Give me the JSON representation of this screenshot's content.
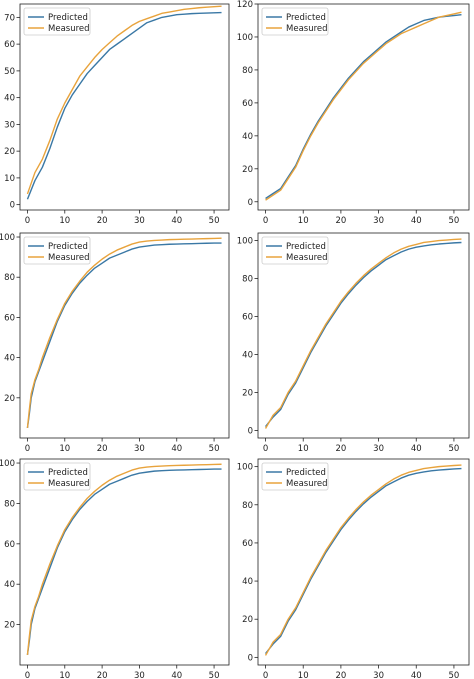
{
  "colors": {
    "predicted": "#3a78a5",
    "measured": "#e8a33c",
    "axis": "#222222"
  },
  "chart_data": [
    {
      "type": "line",
      "legend": "top-left",
      "grid": false,
      "xlim": [
        -2,
        54
      ],
      "ylim": [
        -2,
        75
      ],
      "xticks": [
        0,
        10,
        20,
        30,
        40,
        50
      ],
      "yticks": [
        0,
        10,
        20,
        30,
        40,
        50,
        60,
        70
      ],
      "x": [
        0,
        2,
        4,
        6,
        8,
        10,
        12,
        14,
        16,
        18,
        20,
        22,
        24,
        26,
        28,
        30,
        32,
        34,
        36,
        38,
        40,
        42,
        44,
        46,
        48,
        50,
        52
      ],
      "series": [
        {
          "name": "Predicted",
          "values": [
            2,
            9,
            14,
            21,
            29,
            36,
            41,
            45,
            49,
            52,
            55,
            58,
            60,
            62,
            64,
            66,
            68,
            69,
            70,
            70.5,
            71,
            71.2,
            71.4,
            71.5,
            71.6,
            71.7,
            71.8
          ]
        },
        {
          "name": "Measured",
          "values": [
            4,
            12,
            17,
            24,
            32,
            38,
            43,
            48,
            51.5,
            55,
            58,
            60.5,
            63,
            65,
            67,
            68.5,
            69.5,
            70.5,
            71.5,
            72,
            72.5,
            73,
            73.3,
            73.6,
            73.8,
            74,
            74.2
          ]
        }
      ]
    },
    {
      "type": "line",
      "legend": "top-left",
      "grid": false,
      "xlim": [
        -2,
        54
      ],
      "ylim": [
        -5,
        120
      ],
      "xticks": [
        0,
        10,
        20,
        30,
        40,
        50
      ],
      "yticks": [
        0,
        20,
        40,
        60,
        80,
        100,
        120
      ],
      "x": [
        0,
        2,
        4,
        6,
        8,
        10,
        12,
        14,
        16,
        18,
        20,
        22,
        24,
        26,
        28,
        30,
        32,
        34,
        36,
        38,
        40,
        42,
        44,
        46,
        48,
        50,
        52
      ],
      "series": [
        {
          "name": "Predicted",
          "values": [
            2,
            5,
            8,
            15,
            22,
            32,
            41,
            49,
            56,
            63,
            69,
            75,
            80,
            85,
            89,
            93,
            97,
            100,
            103,
            106,
            108,
            110,
            111,
            112,
            112.5,
            113,
            113.5
          ]
        },
        {
          "name": "Measured",
          "values": [
            1,
            4,
            7,
            14,
            21,
            31,
            40,
            48,
            55,
            62,
            68,
            74,
            79,
            84,
            88,
            92,
            96,
            99,
            102,
            104,
            106,
            108,
            110,
            112,
            113,
            114,
            115
          ]
        }
      ]
    },
    {
      "type": "line",
      "legend": "top-left",
      "grid": false,
      "xlim": [
        -2,
        54
      ],
      "ylim": [
        0,
        102
      ],
      "xticks": [
        0,
        10,
        20,
        30,
        40,
        50
      ],
      "yticks": [
        20,
        40,
        60,
        80,
        100
      ],
      "x": [
        0,
        0.5,
        1,
        2,
        3,
        4,
        6,
        8,
        10,
        12,
        14,
        16,
        18,
        20,
        22,
        24,
        26,
        28,
        30,
        32,
        34,
        36,
        38,
        40,
        42,
        44,
        46,
        48,
        50,
        52
      ],
      "series": [
        {
          "name": "Predicted",
          "values": [
            5,
            12,
            20,
            28,
            33,
            38,
            48,
            58,
            66,
            72,
            77,
            81,
            84.5,
            87,
            89.5,
            91,
            92.5,
            94,
            95,
            95.5,
            96,
            96.2,
            96.4,
            96.5,
            96.6,
            96.7,
            96.8,
            96.9,
            97,
            97
          ]
        },
        {
          "name": "Measured",
          "values": [
            5,
            14,
            22,
            29,
            34,
            40,
            50,
            59,
            67,
            73,
            78,
            82.5,
            86,
            89,
            91.5,
            93.5,
            95,
            96.5,
            97.5,
            98,
            98.3,
            98.5,
            98.7,
            98.8,
            98.9,
            99,
            99.1,
            99.2,
            99.3,
            99.4
          ]
        }
      ]
    },
    {
      "type": "line",
      "legend": "top-left",
      "grid": false,
      "xlim": [
        -2,
        54
      ],
      "ylim": [
        -4,
        104
      ],
      "xticks": [
        0,
        10,
        20,
        30,
        40,
        50
      ],
      "yticks": [
        0,
        20,
        40,
        60,
        80,
        100
      ],
      "x": [
        0,
        2,
        4,
        6,
        8,
        10,
        12,
        14,
        16,
        18,
        20,
        22,
        24,
        26,
        28,
        30,
        32,
        34,
        36,
        38,
        40,
        42,
        44,
        46,
        48,
        50,
        52
      ],
      "series": [
        {
          "name": "Predicted",
          "values": [
            2,
            7,
            11,
            19,
            25,
            33,
            41,
            48,
            55,
            61,
            67,
            72,
            76.5,
            80.5,
            84,
            87,
            90,
            92,
            94,
            95.5,
            96.5,
            97.2,
            97.8,
            98.2,
            98.5,
            98.8,
            99
          ]
        },
        {
          "name": "Measured",
          "values": [
            1,
            8,
            12,
            20,
            26,
            34,
            42,
            49,
            56,
            62,
            68,
            73,
            77.5,
            81.5,
            85,
            88,
            91,
            93.5,
            95.5,
            97,
            98,
            99,
            99.5,
            100,
            100.3,
            100.6,
            100.8
          ]
        }
      ]
    },
    {
      "type": "line",
      "legend": "top-left",
      "grid": false,
      "xlim": [
        -2,
        54
      ],
      "ylim": [
        0,
        102
      ],
      "xticks": [
        0,
        10,
        20,
        30,
        40,
        50
      ],
      "yticks": [
        20,
        40,
        60,
        80,
        100
      ],
      "x": [
        0,
        0.5,
        1,
        2,
        3,
        4,
        6,
        8,
        10,
        12,
        14,
        16,
        18,
        20,
        22,
        24,
        26,
        28,
        30,
        32,
        34,
        36,
        38,
        40,
        42,
        44,
        46,
        48,
        50,
        52
      ],
      "series": [
        {
          "name": "Predicted",
          "values": [
            5,
            12,
            20,
            28,
            33,
            38,
            48,
            58,
            66,
            72,
            77,
            81,
            84.5,
            87,
            89.5,
            91,
            92.5,
            94,
            95,
            95.5,
            96,
            96.2,
            96.4,
            96.5,
            96.6,
            96.7,
            96.8,
            96.9,
            97,
            97
          ]
        },
        {
          "name": "Measured",
          "values": [
            5,
            14,
            22,
            29,
            34,
            40,
            50,
            59,
            67,
            73,
            78,
            82.5,
            86,
            89,
            91.5,
            93.5,
            95,
            96.5,
            97.5,
            98,
            98.3,
            98.5,
            98.7,
            98.8,
            98.9,
            99,
            99.1,
            99.2,
            99.3,
            99.4
          ]
        }
      ]
    },
    {
      "type": "line",
      "legend": "top-left",
      "grid": false,
      "xlim": [
        -2,
        54
      ],
      "ylim": [
        -4,
        104
      ],
      "xticks": [
        0,
        10,
        20,
        30,
        40,
        50
      ],
      "yticks": [
        0,
        20,
        40,
        60,
        80,
        100
      ],
      "x": [
        0,
        2,
        4,
        6,
        8,
        10,
        12,
        14,
        16,
        18,
        20,
        22,
        24,
        26,
        28,
        30,
        32,
        34,
        36,
        38,
        40,
        42,
        44,
        46,
        48,
        50,
        52
      ],
      "series": [
        {
          "name": "Predicted",
          "values": [
            2,
            7,
            11,
            19,
            25,
            33,
            41,
            48,
            55,
            61,
            67,
            72,
            76.5,
            80.5,
            84,
            87,
            90,
            92,
            94,
            95.5,
            96.5,
            97.2,
            97.8,
            98.2,
            98.5,
            98.8,
            99
          ]
        },
        {
          "name": "Measured",
          "values": [
            1,
            8,
            12,
            20,
            26,
            34,
            42,
            49,
            56,
            62,
            68,
            73,
            77.5,
            81.5,
            85,
            88,
            91,
            93.5,
            95.5,
            97,
            98,
            99,
            99.5,
            100,
            100.3,
            100.6,
            100.8
          ]
        }
      ]
    }
  ]
}
